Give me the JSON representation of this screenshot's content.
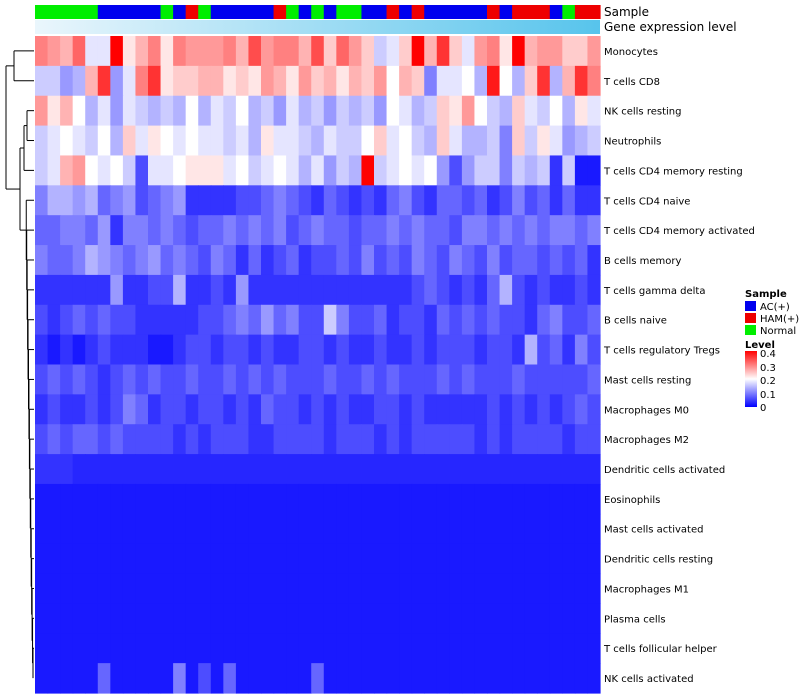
{
  "chart_data": {
    "type": "heatmap",
    "annotation_tracks": [
      {
        "name": "Sample"
      },
      {
        "name": "Gene expression level"
      }
    ],
    "sample_groups": [
      "N",
      "N",
      "N",
      "N",
      "N",
      "A",
      "A",
      "A",
      "A",
      "A",
      "N",
      "A",
      "H",
      "N",
      "A",
      "A",
      "A",
      "A",
      "A",
      "H",
      "N",
      "A",
      "N",
      "A",
      "N",
      "N",
      "A",
      "A",
      "H",
      "A",
      "H",
      "A",
      "A",
      "A",
      "A",
      "A",
      "H",
      "A",
      "H",
      "H",
      "H",
      "A",
      "N",
      "H",
      "H"
    ],
    "sample_color_map": {
      "A": "#0000ee",
      "H": "#ee0000",
      "N": "#00ee00"
    },
    "row_labels": [
      "Monocytes",
      "T cells CD8",
      "NK cells resting",
      "Neutrophils",
      "T cells CD4 memory resting",
      "T cells CD4 naive",
      "T cells CD4 memory activated",
      "B cells memory",
      "T cells gamma delta",
      "B cells naive",
      "T cells regulatory  Tregs",
      "Mast cells resting",
      "Macrophages M0",
      "Macrophages M2",
      "Dendritic cells activated",
      "Eosinophils",
      "Mast cells activated",
      "Dendritic cells resting",
      "Macrophages M1",
      "Plasma cells",
      "T cells follicular helper",
      "NK cells activated"
    ],
    "values": [
      [
        0.3,
        0.28,
        0.26,
        0.32,
        0.18,
        0.18,
        0.4,
        0.22,
        0.26,
        0.3,
        0.22,
        0.3,
        0.28,
        0.28,
        0.28,
        0.3,
        0.26,
        0.34,
        0.28,
        0.3,
        0.3,
        0.26,
        0.34,
        0.24,
        0.32,
        0.28,
        0.24,
        0.16,
        0.18,
        0.24,
        0.4,
        0.26,
        0.36,
        0.24,
        0.18,
        0.28,
        0.3,
        0.22,
        0.4,
        0.26,
        0.28,
        0.28,
        0.24,
        0.24,
        0.28
      ],
      [
        0.16,
        0.16,
        0.12,
        0.14,
        0.26,
        0.36,
        0.12,
        0.18,
        0.3,
        0.36,
        0.22,
        0.24,
        0.24,
        0.26,
        0.26,
        0.22,
        0.24,
        0.22,
        0.28,
        0.26,
        0.22,
        0.28,
        0.24,
        0.26,
        0.22,
        0.26,
        0.24,
        0.28,
        0.2,
        0.26,
        0.24,
        0.1,
        0.18,
        0.18,
        0.2,
        0.14,
        0.38,
        0.2,
        0.14,
        0.24,
        0.36,
        0.14,
        0.26,
        0.36,
        0.3
      ],
      [
        0.28,
        0.22,
        0.26,
        0.2,
        0.14,
        0.18,
        0.12,
        0.18,
        0.16,
        0.14,
        0.16,
        0.14,
        0.2,
        0.14,
        0.18,
        0.16,
        0.2,
        0.14,
        0.16,
        0.12,
        0.18,
        0.14,
        0.16,
        0.12,
        0.16,
        0.14,
        0.16,
        0.12,
        0.2,
        0.18,
        0.14,
        0.16,
        0.24,
        0.22,
        0.28,
        0.2,
        0.16,
        0.14,
        0.24,
        0.18,
        0.16,
        0.2,
        0.14,
        0.22,
        0.18
      ],
      [
        0.16,
        0.18,
        0.2,
        0.18,
        0.16,
        0.2,
        0.14,
        0.24,
        0.18,
        0.22,
        0.2,
        0.18,
        0.2,
        0.18,
        0.18,
        0.16,
        0.18,
        0.14,
        0.22,
        0.18,
        0.18,
        0.16,
        0.14,
        0.18,
        0.16,
        0.16,
        0.2,
        0.24,
        0.18,
        0.2,
        0.16,
        0.14,
        0.24,
        0.18,
        0.14,
        0.14,
        0.16,
        0.1,
        0.24,
        0.16,
        0.22,
        0.18,
        0.12,
        0.14,
        0.16
      ],
      [
        0.16,
        0.18,
        0.26,
        0.28,
        0.2,
        0.18,
        0.2,
        0.16,
        0.06,
        0.18,
        0.18,
        0.2,
        0.22,
        0.22,
        0.22,
        0.18,
        0.2,
        0.16,
        0.18,
        0.2,
        0.18,
        0.14,
        0.18,
        0.12,
        0.16,
        0.14,
        0.42,
        0.16,
        0.18,
        0.2,
        0.18,
        0.2,
        0.12,
        0.06,
        0.12,
        0.16,
        0.16,
        0.1,
        0.16,
        0.14,
        0.16,
        0.04,
        0.16,
        0.02,
        0.02
      ],
      [
        0.1,
        0.14,
        0.14,
        0.12,
        0.14,
        0.08,
        0.1,
        0.12,
        0.06,
        0.08,
        0.1,
        0.12,
        0.04,
        0.04,
        0.04,
        0.04,
        0.06,
        0.06,
        0.08,
        0.1,
        0.08,
        0.06,
        0.04,
        0.08,
        0.06,
        0.04,
        0.06,
        0.04,
        0.08,
        0.1,
        0.06,
        0.04,
        0.08,
        0.08,
        0.06,
        0.08,
        0.04,
        0.06,
        0.1,
        0.06,
        0.08,
        0.04,
        0.08,
        0.04,
        0.04
      ],
      [
        0.08,
        0.08,
        0.1,
        0.1,
        0.08,
        0.12,
        0.04,
        0.1,
        0.1,
        0.08,
        0.1,
        0.08,
        0.06,
        0.08,
        0.08,
        0.1,
        0.08,
        0.1,
        0.08,
        0.1,
        0.06,
        0.08,
        0.1,
        0.08,
        0.08,
        0.06,
        0.08,
        0.08,
        0.1,
        0.08,
        0.1,
        0.08,
        0.08,
        0.06,
        0.1,
        0.1,
        0.08,
        0.1,
        0.08,
        0.1,
        0.08,
        0.1,
        0.1,
        0.08,
        0.1
      ],
      [
        0.1,
        0.08,
        0.08,
        0.1,
        0.14,
        0.12,
        0.1,
        0.08,
        0.1,
        0.12,
        0.08,
        0.1,
        0.08,
        0.06,
        0.1,
        0.08,
        0.04,
        0.08,
        0.04,
        0.06,
        0.08,
        0.04,
        0.06,
        0.06,
        0.08,
        0.06,
        0.1,
        0.06,
        0.08,
        0.06,
        0.1,
        0.08,
        0.06,
        0.1,
        0.08,
        0.06,
        0.1,
        0.06,
        0.08,
        0.08,
        0.06,
        0.08,
        0.06,
        0.08,
        0.04
      ],
      [
        0.04,
        0.04,
        0.04,
        0.04,
        0.04,
        0.04,
        0.12,
        0.04,
        0.04,
        0.06,
        0.06,
        0.14,
        0.04,
        0.04,
        0.06,
        0.04,
        0.12,
        0.04,
        0.04,
        0.04,
        0.04,
        0.04,
        0.04,
        0.04,
        0.04,
        0.04,
        0.04,
        0.04,
        0.04,
        0.04,
        0.06,
        0.08,
        0.06,
        0.04,
        0.06,
        0.04,
        0.08,
        0.14,
        0.06,
        0.04,
        0.06,
        0.04,
        0.04,
        0.06,
        0.04
      ],
      [
        0.06,
        0.04,
        0.06,
        0.08,
        0.06,
        0.08,
        0.06,
        0.06,
        0.04,
        0.04,
        0.04,
        0.04,
        0.04,
        0.06,
        0.06,
        0.08,
        0.1,
        0.08,
        0.12,
        0.08,
        0.1,
        0.06,
        0.06,
        0.16,
        0.1,
        0.06,
        0.06,
        0.08,
        0.04,
        0.06,
        0.06,
        0.04,
        0.08,
        0.06,
        0.08,
        0.06,
        0.08,
        0.06,
        0.06,
        0.04,
        0.08,
        0.1,
        0.06,
        0.06,
        0.08
      ],
      [
        0.04,
        0.02,
        0.04,
        0.02,
        0.04,
        0.06,
        0.04,
        0.04,
        0.04,
        0.02,
        0.02,
        0.04,
        0.06,
        0.06,
        0.04,
        0.06,
        0.06,
        0.04,
        0.06,
        0.04,
        0.04,
        0.06,
        0.06,
        0.04,
        0.06,
        0.04,
        0.04,
        0.06,
        0.04,
        0.04,
        0.06,
        0.04,
        0.06,
        0.06,
        0.06,
        0.04,
        0.06,
        0.06,
        0.04,
        0.14,
        0.06,
        0.08,
        0.04,
        0.1,
        0.06
      ],
      [
        0.06,
        0.08,
        0.06,
        0.08,
        0.06,
        0.04,
        0.06,
        0.08,
        0.06,
        0.08,
        0.06,
        0.06,
        0.08,
        0.06,
        0.06,
        0.08,
        0.06,
        0.08,
        0.06,
        0.08,
        0.06,
        0.06,
        0.06,
        0.08,
        0.06,
        0.06,
        0.08,
        0.06,
        0.08,
        0.06,
        0.06,
        0.06,
        0.08,
        0.06,
        0.08,
        0.06,
        0.06,
        0.06,
        0.08,
        0.06,
        0.06,
        0.06,
        0.06,
        0.06,
        0.08
      ],
      [
        0.04,
        0.06,
        0.04,
        0.04,
        0.06,
        0.04,
        0.06,
        0.1,
        0.08,
        0.04,
        0.06,
        0.06,
        0.04,
        0.06,
        0.06,
        0.04,
        0.06,
        0.04,
        0.08,
        0.06,
        0.06,
        0.04,
        0.06,
        0.04,
        0.06,
        0.04,
        0.04,
        0.06,
        0.06,
        0.04,
        0.06,
        0.04,
        0.04,
        0.04,
        0.04,
        0.04,
        0.06,
        0.04,
        0.06,
        0.04,
        0.06,
        0.04,
        0.06,
        0.08,
        0.06
      ],
      [
        0.06,
        0.08,
        0.06,
        0.08,
        0.08,
        0.06,
        0.08,
        0.06,
        0.06,
        0.06,
        0.06,
        0.04,
        0.06,
        0.04,
        0.06,
        0.06,
        0.06,
        0.04,
        0.04,
        0.06,
        0.06,
        0.06,
        0.06,
        0.04,
        0.06,
        0.06,
        0.06,
        0.04,
        0.06,
        0.04,
        0.06,
        0.06,
        0.06,
        0.06,
        0.06,
        0.04,
        0.06,
        0.04,
        0.06,
        0.06,
        0.06,
        0.06,
        0.04,
        0.06,
        0.06
      ],
      [
        0.04,
        0.04,
        0.04,
        0.03,
        0.03,
        0.03,
        0.03,
        0.03,
        0.03,
        0.03,
        0.03,
        0.03,
        0.03,
        0.03,
        0.03,
        0.03,
        0.03,
        0.03,
        0.03,
        0.03,
        0.03,
        0.03,
        0.03,
        0.03,
        0.03,
        0.03,
        0.03,
        0.03,
        0.03,
        0.03,
        0.03,
        0.03,
        0.03,
        0.03,
        0.03,
        0.03,
        0.03,
        0.03,
        0.03,
        0.03,
        0.03,
        0.03,
        0.03,
        0.03,
        0.03
      ],
      [
        0.02,
        0.02,
        0.02,
        0.02,
        0.02,
        0.02,
        0.02,
        0.02,
        0.02,
        0.02,
        0.02,
        0.02,
        0.02,
        0.02,
        0.02,
        0.02,
        0.02,
        0.02,
        0.02,
        0.02,
        0.02,
        0.02,
        0.02,
        0.02,
        0.02,
        0.02,
        0.02,
        0.02,
        0.02,
        0.02,
        0.02,
        0.02,
        0.02,
        0.02,
        0.02,
        0.02,
        0.02,
        0.02,
        0.02,
        0.02,
        0.02,
        0.02,
        0.02,
        0.02,
        0.02
      ],
      [
        0.02,
        0.02,
        0.02,
        0.02,
        0.02,
        0.02,
        0.02,
        0.02,
        0.02,
        0.02,
        0.02,
        0.02,
        0.02,
        0.02,
        0.02,
        0.02,
        0.02,
        0.02,
        0.02,
        0.02,
        0.02,
        0.02,
        0.02,
        0.02,
        0.02,
        0.02,
        0.02,
        0.02,
        0.02,
        0.02,
        0.02,
        0.02,
        0.02,
        0.02,
        0.02,
        0.02,
        0.02,
        0.02,
        0.02,
        0.02,
        0.02,
        0.02,
        0.02,
        0.02,
        0.02
      ],
      [
        0.02,
        0.02,
        0.02,
        0.02,
        0.02,
        0.02,
        0.02,
        0.02,
        0.02,
        0.02,
        0.02,
        0.02,
        0.02,
        0.02,
        0.02,
        0.02,
        0.02,
        0.02,
        0.02,
        0.02,
        0.02,
        0.02,
        0.02,
        0.02,
        0.02,
        0.02,
        0.02,
        0.02,
        0.02,
        0.02,
        0.02,
        0.02,
        0.02,
        0.02,
        0.02,
        0.02,
        0.02,
        0.02,
        0.02,
        0.02,
        0.02,
        0.02,
        0.02,
        0.02,
        0.02
      ],
      [
        0.02,
        0.02,
        0.02,
        0.02,
        0.02,
        0.02,
        0.02,
        0.02,
        0.02,
        0.02,
        0.02,
        0.02,
        0.02,
        0.02,
        0.02,
        0.02,
        0.02,
        0.02,
        0.02,
        0.02,
        0.02,
        0.02,
        0.02,
        0.02,
        0.02,
        0.02,
        0.02,
        0.02,
        0.02,
        0.02,
        0.02,
        0.02,
        0.02,
        0.02,
        0.02,
        0.02,
        0.02,
        0.02,
        0.02,
        0.02,
        0.02,
        0.02,
        0.02,
        0.02,
        0.02
      ],
      [
        0.02,
        0.02,
        0.02,
        0.02,
        0.02,
        0.02,
        0.02,
        0.02,
        0.02,
        0.02,
        0.02,
        0.02,
        0.02,
        0.02,
        0.02,
        0.02,
        0.02,
        0.02,
        0.02,
        0.02,
        0.02,
        0.02,
        0.02,
        0.02,
        0.02,
        0.02,
        0.02,
        0.02,
        0.02,
        0.02,
        0.02,
        0.02,
        0.02,
        0.02,
        0.02,
        0.02,
        0.02,
        0.02,
        0.02,
        0.02,
        0.02,
        0.02,
        0.02,
        0.02,
        0.02
      ],
      [
        0.02,
        0.02,
        0.02,
        0.02,
        0.02,
        0.02,
        0.02,
        0.02,
        0.02,
        0.02,
        0.02,
        0.02,
        0.02,
        0.02,
        0.02,
        0.02,
        0.02,
        0.02,
        0.02,
        0.02,
        0.02,
        0.02,
        0.02,
        0.02,
        0.02,
        0.02,
        0.02,
        0.02,
        0.02,
        0.02,
        0.02,
        0.02,
        0.02,
        0.02,
        0.02,
        0.02,
        0.02,
        0.02,
        0.02,
        0.02,
        0.02,
        0.02,
        0.02,
        0.02,
        0.02
      ],
      [
        0.02,
        0.02,
        0.02,
        0.02,
        0.02,
        0.08,
        0.02,
        0.02,
        0.02,
        0.02,
        0.02,
        0.1,
        0.02,
        0.06,
        0.02,
        0.08,
        0.02,
        0.02,
        0.02,
        0.02,
        0.02,
        0.02,
        0.08,
        0.02,
        0.02,
        0.02,
        0.02,
        0.02,
        0.02,
        0.02,
        0.02,
        0.02,
        0.02,
        0.02,
        0.02,
        0.02,
        0.02,
        0.02,
        0.02,
        0.02,
        0.02,
        0.02,
        0.02,
        0.02,
        0.02
      ]
    ],
    "legend": {
      "sample_title": "Sample",
      "sample_entries": [
        {
          "label": "AC(+)",
          "color": "#0000ee"
        },
        {
          "label": "HAM(+)",
          "color": "#ee0000"
        },
        {
          "label": "Normal",
          "color": "#00ee00"
        }
      ],
      "level_title": "Level",
      "level_range": [
        0,
        0.4
      ],
      "level_ticks": [
        "0.4",
        "0.3",
        "0.2",
        "0.1",
        "0"
      ],
      "level_colors": [
        "#0000ff",
        "#ffffff",
        "#ff0000"
      ]
    }
  }
}
